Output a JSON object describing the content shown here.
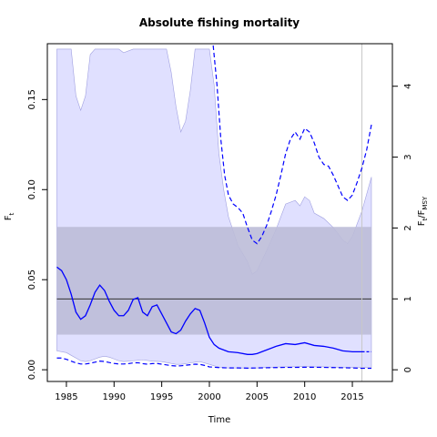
{
  "chart_data": {
    "type": "line",
    "title": "Absolute fishing mortality",
    "xlabel": "Time",
    "ylabel_base": "F",
    "ylabel_sub": "t",
    "y2label_base": "F",
    "y2label_sub": "t",
    "y2label_sep": "/F",
    "y2label_sub2": "MSY",
    "xlim": [
      1983.0,
      2019.2
    ],
    "ylim": [
      -0.0065,
      0.181
    ],
    "y2lim": [
      -0.165,
      4.6
    ],
    "x_ticks": [
      1985,
      1990,
      1995,
      2000,
      2005,
      2010,
      2015
    ],
    "x_tick_labels": [
      "1985",
      "1990",
      "1995",
      "2000",
      "2005",
      "2010",
      "2015"
    ],
    "y_ticks": [
      0.0,
      0.05,
      0.1,
      0.15
    ],
    "y_tick_labels": [
      "0.00",
      "0.05",
      "0.10",
      "0.15"
    ],
    "y2_ticks": [
      0,
      1,
      2,
      3,
      4
    ],
    "y2_tick_labels": [
      "0",
      "1",
      "2",
      "3",
      "4"
    ],
    "grid": false,
    "vertical_line_x": 2016.0,
    "fmsy": {
      "estimate": 0.0393,
      "lower": 0.0195,
      "upper": 0.0793,
      "color": "#bcbcd8",
      "line_color": "#333333"
    },
    "estimate": {
      "name": "",
      "color": "#0000ff",
      "x": [
        1984.0,
        1984.5,
        1985.0,
        1985.5,
        1986.0,
        1986.5,
        1987.0,
        1987.5,
        1988.0,
        1988.5,
        1989.0,
        1989.5,
        1990.0,
        1990.5,
        1991.0,
        1991.5,
        1992.0,
        1992.5,
        1993.0,
        1993.5,
        1994.0,
        1994.5,
        1995.0,
        1995.5,
        1996.0,
        1996.5,
        1997.0,
        1997.5,
        1998.0,
        1998.5,
        1999.0,
        1999.5,
        2000.0,
        2000.5,
        2001.0,
        2002.0,
        2003.0,
        2004.0,
        2004.5,
        2005.0,
        2006.0,
        2007.0,
        2008.0,
        2009.0,
        2010.0,
        2011.0,
        2012.0,
        2013.0,
        2014.0,
        2015.0,
        2016.0
      ],
      "y": [
        0.057,
        0.055,
        0.05,
        0.042,
        0.032,
        0.028,
        0.03,
        0.036,
        0.043,
        0.047,
        0.044,
        0.038,
        0.033,
        0.03,
        0.03,
        0.033,
        0.039,
        0.04,
        0.032,
        0.03,
        0.035,
        0.036,
        0.031,
        0.026,
        0.021,
        0.02,
        0.022,
        0.027,
        0.031,
        0.034,
        0.033,
        0.026,
        0.018,
        0.014,
        0.012,
        0.01,
        0.0095,
        0.0085,
        0.0085,
        0.009,
        0.011,
        0.013,
        0.0145,
        0.014,
        0.015,
        0.0135,
        0.013,
        0.012,
        0.0105,
        0.01,
        0.01
      ]
    },
    "prediction": {
      "x": [
        2016.0,
        2017.0
      ],
      "y": [
        0.01,
        0.01
      ],
      "style": "dashed"
    },
    "ci_band": {
      "color": "#e0e0ff",
      "edge_color": "#a0a0e0",
      "x": [
        1984.0,
        1985.0,
        1985.5,
        1986.0,
        1986.5,
        1987.0,
        1987.5,
        1988.0,
        1988.5,
        1989.0,
        1989.5,
        1990.0,
        1990.5,
        1991.0,
        1992.0,
        1993.0,
        1994.0,
        1995.0,
        1995.5,
        1996.0,
        1996.5,
        1997.0,
        1997.5,
        1998.0,
        1998.5,
        1999.0,
        2000.0,
        2000.5,
        2001.0,
        2001.5,
        2002.0,
        2003.0,
        2004.0,
        2004.5,
        2005.0,
        2006.0,
        2007.0,
        2008.0,
        2009.0,
        2009.5,
        2010.0,
        2010.5,
        2011.0,
        2012.0,
        2013.0,
        2014.0,
        2014.5,
        2015.0,
        2016.0,
        2017.0
      ],
      "upper": [
        0.178,
        0.178,
        0.178,
        0.152,
        0.144,
        0.152,
        0.175,
        0.178,
        0.178,
        0.178,
        0.178,
        0.178,
        0.178,
        0.176,
        0.178,
        0.178,
        0.178,
        0.178,
        0.178,
        0.165,
        0.146,
        0.132,
        0.138,
        0.155,
        0.178,
        0.178,
        0.178,
        0.158,
        0.12,
        0.1,
        0.085,
        0.069,
        0.06,
        0.053,
        0.055,
        0.066,
        0.078,
        0.092,
        0.094,
        0.091,
        0.096,
        0.094,
        0.087,
        0.084,
        0.079,
        0.072,
        0.07,
        0.074,
        0.088,
        0.107
      ],
      "lower": [
        0.0105,
        0.0095,
        0.008,
        0.0065,
        0.005,
        0.0045,
        0.005,
        0.006,
        0.007,
        0.0075,
        0.007,
        0.006,
        0.005,
        0.0045,
        0.005,
        0.0055,
        0.0048,
        0.0045,
        0.004,
        0.0035,
        0.003,
        0.003,
        0.0033,
        0.0038,
        0.0042,
        0.0045,
        0.003,
        0.0022,
        0.0015,
        0.0012,
        0.001,
        0.001,
        0.001,
        0.0009,
        0.001,
        0.0013,
        0.0015,
        0.0016,
        0.0017,
        0.0018,
        0.0018,
        0.0017,
        0.0016,
        0.0016,
        0.0015,
        0.0014,
        0.0013,
        0.0013,
        0.0012,
        0.0012
      ]
    },
    "upper_dashed": {
      "style": "dashed",
      "x": [
        2000.4,
        2000.8,
        2001.2,
        2001.6,
        2002.0,
        2002.5,
        2003.0,
        2003.5,
        2004.0,
        2004.5,
        2005.0,
        2005.5,
        2006.0,
        2006.5,
        2007.0,
        2007.5,
        2008.0,
        2008.5,
        2009.0,
        2009.5,
        2010.0,
        2010.5,
        2011.0,
        2011.5,
        2012.0,
        2012.5,
        2013.0,
        2013.5,
        2014.0,
        2014.5,
        2015.0,
        2015.5,
        2016.0,
        2016.5,
        2017.0
      ],
      "y": [
        0.18,
        0.158,
        0.128,
        0.108,
        0.097,
        0.092,
        0.09,
        0.087,
        0.079,
        0.072,
        0.07,
        0.074,
        0.08,
        0.088,
        0.097,
        0.108,
        0.12,
        0.128,
        0.132,
        0.128,
        0.134,
        0.132,
        0.126,
        0.118,
        0.114,
        0.113,
        0.108,
        0.102,
        0.096,
        0.094,
        0.097,
        0.104,
        0.112,
        0.122,
        0.136
      ]
    },
    "lower_dashed": {
      "style": "dashed",
      "x": [
        1984.0,
        1984.5,
        1985.0,
        1985.5,
        1986.0,
        1986.5,
        1987.0,
        1987.5,
        1988.0,
        1988.5,
        1989.0,
        1989.5,
        1990.0,
        1990.5,
        1991.0,
        1991.5,
        1992.0,
        1992.5,
        1993.0,
        1993.5,
        1994.0,
        1994.5,
        1995.0,
        1995.5,
        1996.0,
        1996.5,
        1997.0,
        1997.5,
        1998.0,
        1998.5,
        1999.0,
        1999.5,
        2000.0,
        2001.0,
        2002.0,
        2003.0,
        2004.0,
        2005.0,
        2006.0,
        2007.0,
        2008.0,
        2009.0,
        2010.0,
        2011.0,
        2012.0,
        2013.0,
        2014.0,
        2015.0,
        2016.0,
        2017.0
      ],
      "y": [
        0.0065,
        0.0065,
        0.0058,
        0.0048,
        0.0038,
        0.0032,
        0.0032,
        0.0036,
        0.0042,
        0.0048,
        0.0046,
        0.004,
        0.0035,
        0.0032,
        0.0032,
        0.0034,
        0.0038,
        0.0039,
        0.0034,
        0.0031,
        0.0034,
        0.0035,
        0.0031,
        0.0027,
        0.0023,
        0.0021,
        0.0022,
        0.0025,
        0.0028,
        0.0031,
        0.003,
        0.0024,
        0.0016,
        0.0012,
        0.001,
        0.001,
        0.0009,
        0.001,
        0.0011,
        0.0012,
        0.0013,
        0.0013,
        0.0014,
        0.0014,
        0.0013,
        0.0012,
        0.0011,
        0.001,
        0.0008,
        0.0008
      ]
    }
  }
}
